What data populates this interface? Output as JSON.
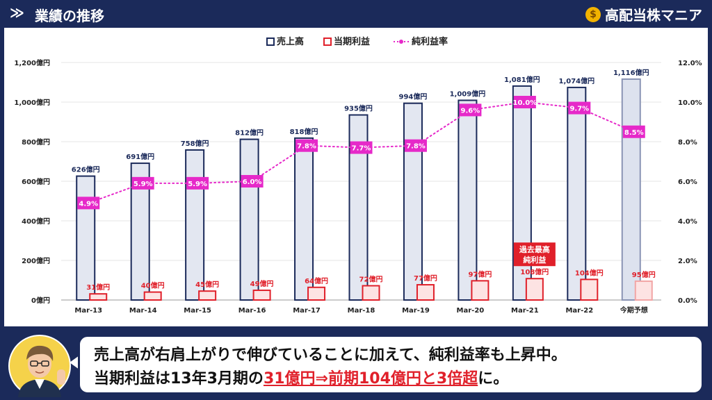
{
  "header": {
    "title": "業績の推移",
    "chevron": "≫",
    "brand": "高配当株マニア",
    "brand_icon": "money-bag-icon"
  },
  "chart_data": {
    "type": "bar",
    "categories": [
      "Mar-13",
      "Mar-14",
      "Mar-15",
      "Mar-16",
      "Mar-17",
      "Mar-18",
      "Mar-19",
      "Mar-20",
      "Mar-21",
      "Mar-22",
      "今期予想"
    ],
    "series": [
      {
        "name": "売上高",
        "axis": "left",
        "values": [
          626,
          691,
          758,
          812,
          818,
          935,
          994,
          1009,
          1081,
          1074,
          1116
        ],
        "labels": [
          "626億円",
          "691億円",
          "758億円",
          "812億円",
          "818億円",
          "935億円",
          "994億円",
          "1,009億円",
          "1,081億円",
          "1,074億円",
          "1,116億円"
        ],
        "color": "#1b2a5a",
        "fill": "#e3e7f1"
      },
      {
        "name": "当期利益",
        "axis": "left",
        "values": [
          31,
          40,
          45,
          49,
          64,
          72,
          77,
          97,
          108,
          104,
          95
        ],
        "labels": [
          "31億円",
          "40億円",
          "45億円",
          "49億円",
          "64億円",
          "72億円",
          "77億円",
          "97億円",
          "108億円",
          "104億円",
          "95億円"
        ],
        "color": "#e0202a",
        "fill": "#fde3e3"
      },
      {
        "name": "純利益率",
        "type": "line",
        "axis": "right",
        "values": [
          4.9,
          5.9,
          5.9,
          6.0,
          7.8,
          7.7,
          7.8,
          9.6,
          10.0,
          9.7,
          8.5
        ],
        "labels": [
          "4.9%",
          "5.9%",
          "5.9%",
          "6.0%",
          "7.8%",
          "7.7%",
          "7.8%",
          "9.6%",
          "10.0%",
          "9.7%",
          "8.5%"
        ],
        "color": "#e629c9"
      }
    ],
    "y_left": {
      "range": [
        0,
        1200
      ],
      "ticks": [
        "0億円",
        "200億円",
        "400億円",
        "600億円",
        "800億円",
        "1,000億円",
        "1,200億円"
      ]
    },
    "y_right": {
      "range": [
        0,
        12
      ],
      "ticks": [
        "0.0%",
        "2.0%",
        "4.0%",
        "6.0%",
        "8.0%",
        "10.0%",
        "12.0%"
      ]
    },
    "legend_position": "top-center",
    "forecast_category": "今期予想",
    "annotation": {
      "text_line1": "過去最高",
      "text_line2": "純利益",
      "category": "Mar-21",
      "color": "#e0202a"
    },
    "grid": true
  },
  "caption": {
    "line1": "売上高が右肩上がりで伸びていることに加えて、純利益率も上昇中。",
    "line2_pre": "当期利益は13年3月期の",
    "line2_highlight": "31億円⇒前期104億円と3倍超",
    "line2_post": "に。"
  }
}
